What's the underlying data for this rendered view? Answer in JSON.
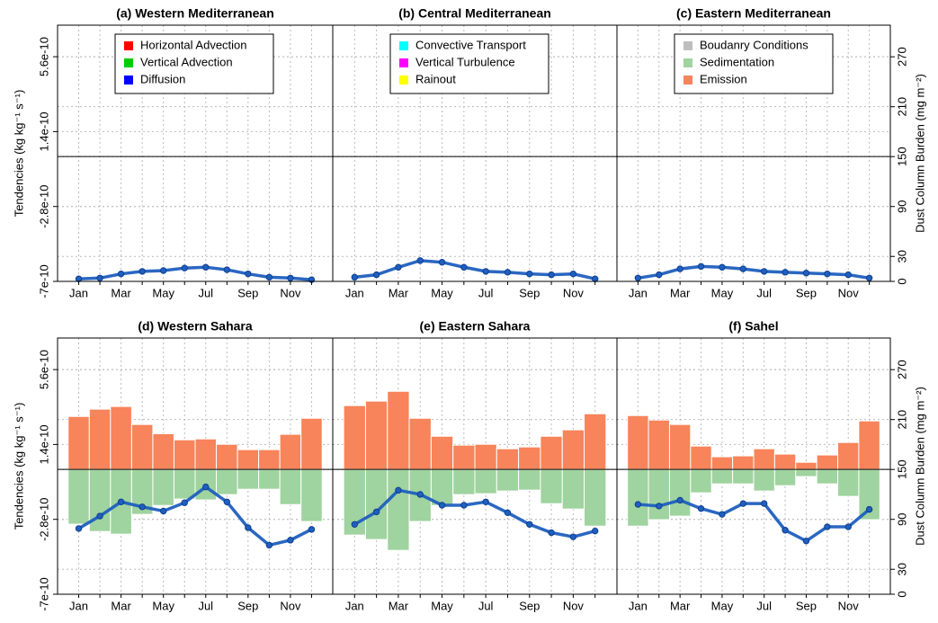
{
  "chart_data": [
    {
      "type": "bar",
      "title": "(a) Western Mediterranean",
      "ylabel": "Tendencies (kg kg⁻¹ s⁻¹)",
      "categories": [
        "Jan",
        null,
        "Mar",
        null,
        "May",
        null,
        "Jul",
        null,
        "Sep",
        null,
        "Nov",
        null
      ],
      "ylim": [
        -7e-10,
        7.37e-10
      ],
      "yticks": [
        -7e-10,
        -2.8e-10,
        1.4e-10,
        5.6e-10
      ],
      "y2lim": [
        0,
        308
      ],
      "grid": true,
      "legend": [
        {
          "name": "Horizontal Advection",
          "color": "#ff0000"
        },
        {
          "name": "Vertical Advection",
          "color": "#00cc00"
        },
        {
          "name": "Diffusion",
          "color": "#0000ff"
        }
      ],
      "burden": {
        "color": "#1f5fbf",
        "axis": "y2",
        "values": [
          3,
          4,
          9,
          12,
          13,
          16,
          17,
          14,
          9,
          5,
          4,
          2
        ]
      }
    },
    {
      "type": "bar",
      "title": "(b) Central Mediterranean",
      "categories": [
        "Jan",
        null,
        "Mar",
        null,
        "May",
        null,
        "Jul",
        null,
        "Sep",
        null,
        "Nov",
        null
      ],
      "ylim": [
        -7e-10,
        7.37e-10
      ],
      "y2lim": [
        0,
        308
      ],
      "grid": true,
      "legend": [
        {
          "name": "Convective Transport",
          "color": "#00ffff"
        },
        {
          "name": "Vertical Turbulence",
          "color": "#ff00ff"
        },
        {
          "name": "Rainout",
          "color": "#ffff00"
        }
      ],
      "burden": {
        "color": "#1f5fbf",
        "axis": "y2",
        "values": [
          5,
          8,
          17,
          25,
          23,
          17,
          12,
          11,
          9,
          8,
          9,
          3
        ]
      }
    },
    {
      "type": "bar",
      "title": "(c) Eastern Mediterranean",
      "y2label": "Dust Column Burden (mg m⁻²)",
      "categories": [
        "Jan",
        null,
        "Mar",
        null,
        "May",
        null,
        "Jul",
        null,
        "Sep",
        null,
        "Nov",
        null
      ],
      "ylim": [
        -7e-10,
        7.37e-10
      ],
      "y2lim": [
        0,
        308
      ],
      "y2ticks": [
        0,
        30,
        90,
        150,
        210,
        270
      ],
      "grid": true,
      "legend": [
        {
          "name": "Boudanry Conditions",
          "color": "#bebebe"
        },
        {
          "name": "Sedimentation",
          "color": "#9fd39f"
        },
        {
          "name": "Emission",
          "color": "#f7845a"
        }
      ],
      "burden": {
        "color": "#1f5fbf",
        "axis": "y2",
        "values": [
          4,
          8,
          15,
          18,
          17,
          15,
          12,
          11,
          10,
          9,
          8,
          4
        ]
      }
    },
    {
      "type": "bar",
      "title": "(d) Western Sahara",
      "ylabel": "Tendencies (kg kg⁻¹ s⁻¹)",
      "categories": [
        "Jan",
        null,
        "Mar",
        null,
        "May",
        null,
        "Jul",
        null,
        "Sep",
        null,
        "Nov",
        null
      ],
      "ylim": [
        -7e-10,
        7.37e-10
      ],
      "yticks": [
        -7e-10,
        -2.8e-10,
        1.4e-10,
        5.6e-10
      ],
      "y2lim": [
        0,
        308
      ],
      "grid": true,
      "series": [
        {
          "name": "Emission",
          "color": "#f7845a",
          "values": [
            2.97e-10,
            3.38e-10,
            3.53e-10,
            2.52e-10,
            2e-10,
            1.66e-10,
            1.71e-10,
            1.41e-10,
            1.11e-10,
            1.11e-10,
            1.97e-10,
            2.87e-10
          ]
        },
        {
          "name": "Sedimentation",
          "color": "#9fd39f",
          "values": [
            -3.07e-10,
            -3.48e-10,
            -3.63e-10,
            -2.52e-10,
            -2.02e-10,
            -1.66e-10,
            -1.71e-10,
            -1.41e-10,
            -1.11e-10,
            -1.11e-10,
            -1.97e-10,
            -2.92e-10
          ]
        }
      ],
      "burden": {
        "color": "#1f5fbf",
        "axis": "y2",
        "values": [
          79,
          94,
          111,
          105,
          100,
          110,
          129,
          111,
          80,
          59,
          65,
          78
        ]
      }
    },
    {
      "type": "bar",
      "title": "(e) Eastern Sahara",
      "categories": [
        "Jan",
        null,
        "Mar",
        null,
        "May",
        null,
        "Jul",
        null,
        "Sep",
        null,
        "Nov",
        null
      ],
      "ylim": [
        -7e-10,
        7.37e-10
      ],
      "y2lim": [
        0,
        308
      ],
      "grid": true,
      "series": [
        {
          "name": "Emission",
          "color": "#f7845a",
          "values": [
            3.58e-10,
            3.83e-10,
            4.38e-10,
            2.87e-10,
            1.86e-10,
            1.36e-10,
            1.41e-10,
            1.16e-10,
            1.26e-10,
            1.86e-10,
            2.22e-10,
            3.12e-10
          ]
        },
        {
          "name": "Sedimentation",
          "color": "#9fd39f",
          "values": [
            -3.68e-10,
            -3.93e-10,
            -4.54e-10,
            -2.92e-10,
            -2.02e-10,
            -1.41e-10,
            -1.36e-10,
            -1.21e-10,
            -1.16e-10,
            -1.92e-10,
            -2.22e-10,
            -3.18e-10
          ]
        }
      ],
      "burden": {
        "color": "#1f5fbf",
        "axis": "y2",
        "values": [
          84,
          99,
          125,
          120,
          107,
          107,
          111,
          98,
          84,
          74,
          69,
          76
        ]
      }
    },
    {
      "type": "bar",
      "title": "(f) Sahel",
      "y2label": "Dust Column Burden (mg m⁻²)",
      "categories": [
        "Jan",
        null,
        "Mar",
        null,
        "May",
        null,
        "Jul",
        null,
        "Sep",
        null,
        "Nov",
        null
      ],
      "ylim": [
        -7e-10,
        7.37e-10
      ],
      "y2lim": [
        0,
        308
      ],
      "y2ticks": [
        0,
        30,
        90,
        150,
        210,
        270
      ],
      "grid": true,
      "series": [
        {
          "name": "Emission",
          "color": "#f7845a",
          "values": [
            3.02e-10,
            2.77e-10,
            2.52e-10,
            1.31e-10,
            7.1e-11,
            7.6e-11,
            1.16e-10,
            8.6e-11,
            4e-11,
            8.1e-11,
            1.51e-10,
            2.72e-10
          ]
        },
        {
          "name": "Sedimentation",
          "color": "#9fd39f",
          "values": [
            -3.18e-10,
            -2.82e-10,
            -2.62e-10,
            -1.31e-10,
            -8.1e-11,
            -8.1e-11,
            -1.21e-10,
            -9.1e-11,
            -4e-11,
            -8.1e-11,
            -1.51e-10,
            -2.82e-10
          ]
        }
      ],
      "burden": {
        "color": "#1f5fbf",
        "axis": "y2",
        "values": [
          108,
          106,
          113,
          103,
          96,
          109,
          109,
          77,
          64,
          81,
          81,
          102
        ]
      }
    }
  ]
}
